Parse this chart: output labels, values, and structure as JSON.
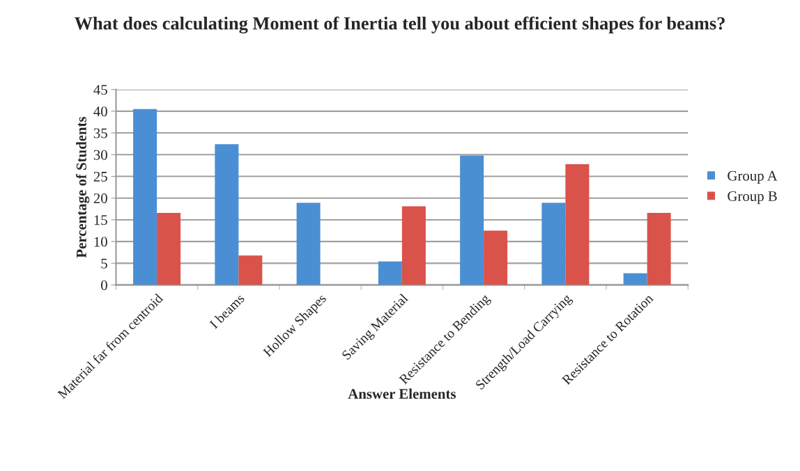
{
  "chart_data": {
    "type": "bar",
    "title": "What does calculating Moment of Inertia tell you about efficient shapes for beams?",
    "xlabel": "Answer Elements",
    "ylabel": "Percentage of Students",
    "categories": [
      "Material far from centroid",
      "I beams",
      "Hollow Shapes",
      "Saving Material",
      "Resistance to Bending",
      "Strength/Load Carrying",
      "Resistance to Rotation"
    ],
    "series": [
      {
        "name": "Group A",
        "color": "#4a8fd3",
        "values": [
          40.5,
          32.4,
          18.9,
          5.4,
          29.8,
          18.9,
          2.7
        ]
      },
      {
        "name": "Group B",
        "color": "#d9534a",
        "values": [
          16.6,
          6.8,
          null,
          18.1,
          12.5,
          27.8,
          16.6
        ]
      }
    ],
    "ylim": [
      0,
      45
    ],
    "yticks": [
      0,
      5,
      10,
      15,
      20,
      25,
      30,
      35,
      40,
      45
    ],
    "grid": "y",
    "legend": "right"
  }
}
